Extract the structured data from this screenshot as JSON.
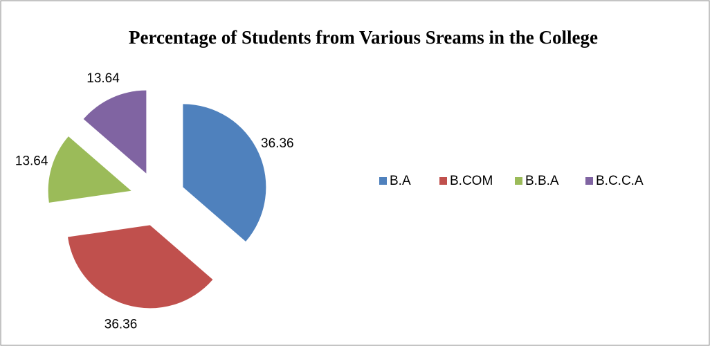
{
  "chart_data": {
    "type": "pie",
    "title": "Percentage of Students from Various Sreams in the College",
    "categories": [
      "B.A",
      "B.COM",
      "B.B.A",
      "B.C.C.A"
    ],
    "values": [
      36.36,
      36.36,
      13.64,
      13.64
    ],
    "colors": [
      "#4f81bd",
      "#c0504d",
      "#9bbb59",
      "#8064a2"
    ],
    "legend": "right"
  }
}
